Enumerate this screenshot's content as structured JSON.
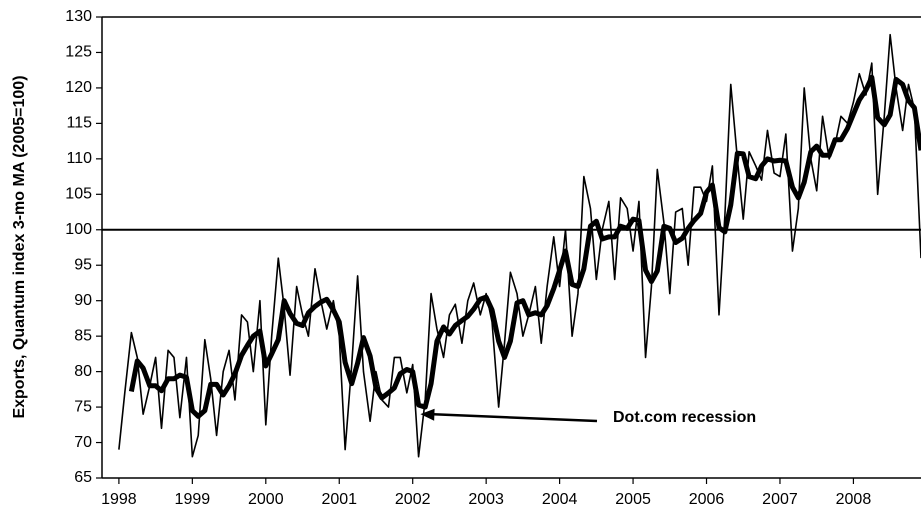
{
  "chart_data": {
    "type": "line",
    "ylabel": "Exports, Quantum index 3-mo MA (2005=100)",
    "xlim": [
      1997.77,
      2008.92
    ],
    "xticks": [
      1998,
      1999,
      2000,
      2001,
      2002,
      2003,
      2004,
      2005,
      2006,
      2007,
      2008
    ],
    "ylim": [
      65,
      130
    ],
    "yticks": [
      65,
      70,
      75,
      80,
      85,
      90,
      95,
      100,
      105,
      110,
      115,
      120,
      125,
      130
    ],
    "hline": 100,
    "x": [
      1998,
      1998.08,
      1998.17,
      1998.25,
      1998.33,
      1998.42,
      1998.5,
      1998.58,
      1998.67,
      1998.75,
      1998.83,
      1998.92,
      1999,
      1999.08,
      1999.17,
      1999.25,
      1999.33,
      1999.42,
      1999.5,
      1999.58,
      1999.67,
      1999.75,
      1999.83,
      1999.92,
      2000,
      2000.08,
      2000.17,
      2000.25,
      2000.33,
      2000.42,
      2000.5,
      2000.58,
      2000.67,
      2000.75,
      2000.83,
      2000.92,
      2001,
      2001.08,
      2001.17,
      2001.25,
      2001.33,
      2001.42,
      2001.5,
      2001.58,
      2001.67,
      2001.75,
      2001.83,
      2001.92,
      2002,
      2002.08,
      2002.17,
      2002.25,
      2002.33,
      2002.42,
      2002.5,
      2002.58,
      2002.67,
      2002.75,
      2002.83,
      2002.92,
      2003,
      2003.08,
      2003.17,
      2003.25,
      2003.33,
      2003.42,
      2003.5,
      2003.58,
      2003.67,
      2003.75,
      2003.83,
      2003.92,
      2004,
      2004.08,
      2004.17,
      2004.25,
      2004.33,
      2004.42,
      2004.5,
      2004.58,
      2004.67,
      2004.75,
      2004.83,
      2004.92,
      2005,
      2005.08,
      2005.17,
      2005.25,
      2005.33,
      2005.42,
      2005.5,
      2005.58,
      2005.67,
      2005.75,
      2005.83,
      2005.92,
      2006,
      2006.08,
      2006.17,
      2006.25,
      2006.33,
      2006.42,
      2006.5,
      2006.58,
      2006.67,
      2006.75,
      2006.83,
      2006.92,
      2007,
      2007.08,
      2007.17,
      2007.25,
      2007.33,
      2007.42,
      2007.5,
      2007.58,
      2007.67,
      2007.75,
      2007.83,
      2007.92,
      2008,
      2008.08,
      2008.17,
      2008.25,
      2008.33,
      2008.42,
      2008.5,
      2008.58,
      2008.67,
      2008.75,
      2008.83,
      2008.92
    ],
    "series": [
      {
        "color": "#000000",
        "width": 1.6,
        "values": [
          69,
          77,
          85.5,
          82,
          74,
          78,
          82,
          72,
          83,
          82,
          73.5,
          82,
          68,
          71,
          84.5,
          79,
          71,
          80,
          83,
          76,
          88,
          87,
          80,
          90,
          72.5,
          85,
          96,
          89,
          79.5,
          92,
          88,
          85,
          94.5,
          90,
          86,
          90,
          85,
          69,
          81,
          93.5,
          80,
          73,
          80,
          76,
          75,
          82,
          82,
          77,
          81,
          68,
          76,
          91,
          86,
          82,
          88,
          89.5,
          84,
          90,
          92.5,
          88,
          91,
          87,
          75,
          84,
          94,
          91,
          85,
          88,
          92,
          84,
          92,
          99,
          92,
          100,
          85,
          91,
          107.5,
          103,
          93,
          100,
          104,
          93,
          104.5,
          103,
          97,
          104,
          82,
          92,
          108.5,
          101,
          91,
          102.5,
          103,
          95,
          106,
          106,
          104,
          109,
          88,
          102,
          120.5,
          110,
          101.5,
          111,
          109,
          107,
          114,
          108,
          107.5,
          113.5,
          97,
          103,
          120,
          110,
          105.5,
          116,
          110,
          112,
          116,
          115,
          118,
          122,
          119,
          123.5,
          105,
          116,
          127.5,
          120,
          114,
          120.5,
          117,
          96
        ]
      },
      {
        "color": "#000000",
        "width": 5,
        "values": [
          null,
          null,
          77.2,
          81.5,
          80.5,
          78,
          78,
          77.3,
          79,
          79,
          79.5,
          79.2,
          74.5,
          73.7,
          74.5,
          78.2,
          78.2,
          76.7,
          78,
          79.7,
          82.3,
          83.7,
          85,
          85.7,
          80.8,
          82.5,
          84.5,
          90,
          88.2,
          86.8,
          86.5,
          88.3,
          89.2,
          89.8,
          90.2,
          88.7,
          87,
          81.3,
          78.3,
          81.2,
          84.8,
          82.2,
          77.7,
          76.3,
          77,
          77.7,
          79.7,
          80.3,
          80,
          75.3,
          75,
          78.3,
          84.3,
          86.3,
          85.3,
          86.5,
          87.2,
          87.8,
          88.8,
          90.2,
          90.5,
          88.7,
          84.3,
          82,
          84.3,
          89.7,
          90,
          88,
          88.3,
          88,
          89.3,
          91.7,
          94.3,
          97,
          92.3,
          92,
          94.5,
          100.5,
          101.2,
          98.7,
          99,
          99,
          100.5,
          100.2,
          101.5,
          101.3,
          94.3,
          92.7,
          94.2,
          100.5,
          100.2,
          98.2,
          98.8,
          100.2,
          101.3,
          102.3,
          105.3,
          106.3,
          100.3,
          99.7,
          103.5,
          110.8,
          110.7,
          107.5,
          107.2,
          109,
          110,
          109.7,
          109.8,
          109.7,
          106,
          104.5,
          106.7,
          111,
          111.8,
          110.5,
          110.5,
          112.7,
          112.7,
          114.3,
          116.3,
          118.3,
          119.7,
          121.5,
          115.8,
          114.8,
          116.2,
          121.2,
          120.5,
          118.2,
          117.2,
          111.2
        ]
      }
    ],
    "annotations": [
      {
        "text": "Dot.com recession",
        "x": 2002.05,
        "y": 74
      }
    ]
  }
}
